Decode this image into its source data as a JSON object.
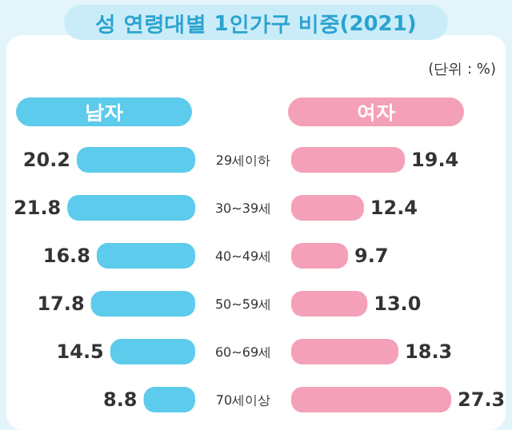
{
  "chart_data": [
    {
      "type": "bar",
      "orientation": "horizontal",
      "title": "성 연령대별 1인가구 비중(2021)",
      "annotations": [
        "(단위 : %)"
      ],
      "categories": [
        "29세이하",
        "30~39세",
        "40~49세",
        "50~59세",
        "60~69세",
        "70세이상"
      ],
      "data_labels": true,
      "series": [
        {
          "name": "남자",
          "color": "#5ccbec",
          "values": [
            20.2,
            21.8,
            16.8,
            17.8,
            14.5,
            8.8
          ]
        }
      ]
    },
    {
      "type": "bar",
      "orientation": "horizontal",
      "categories": [
        null,
        null,
        null,
        null,
        null,
        null
      ],
      "data_labels": true,
      "series": [
        {
          "name": "여자",
          "color": "#f4a0b8",
          "values": [
            19.4,
            12.4,
            9.7,
            13.0,
            18.3,
            27.3
          ],
          "value_labels": [
            "19.4",
            "12.4",
            "9.7",
            "13.0",
            "18.3",
            "27.3"
          ]
        }
      ]
    }
  ]
}
